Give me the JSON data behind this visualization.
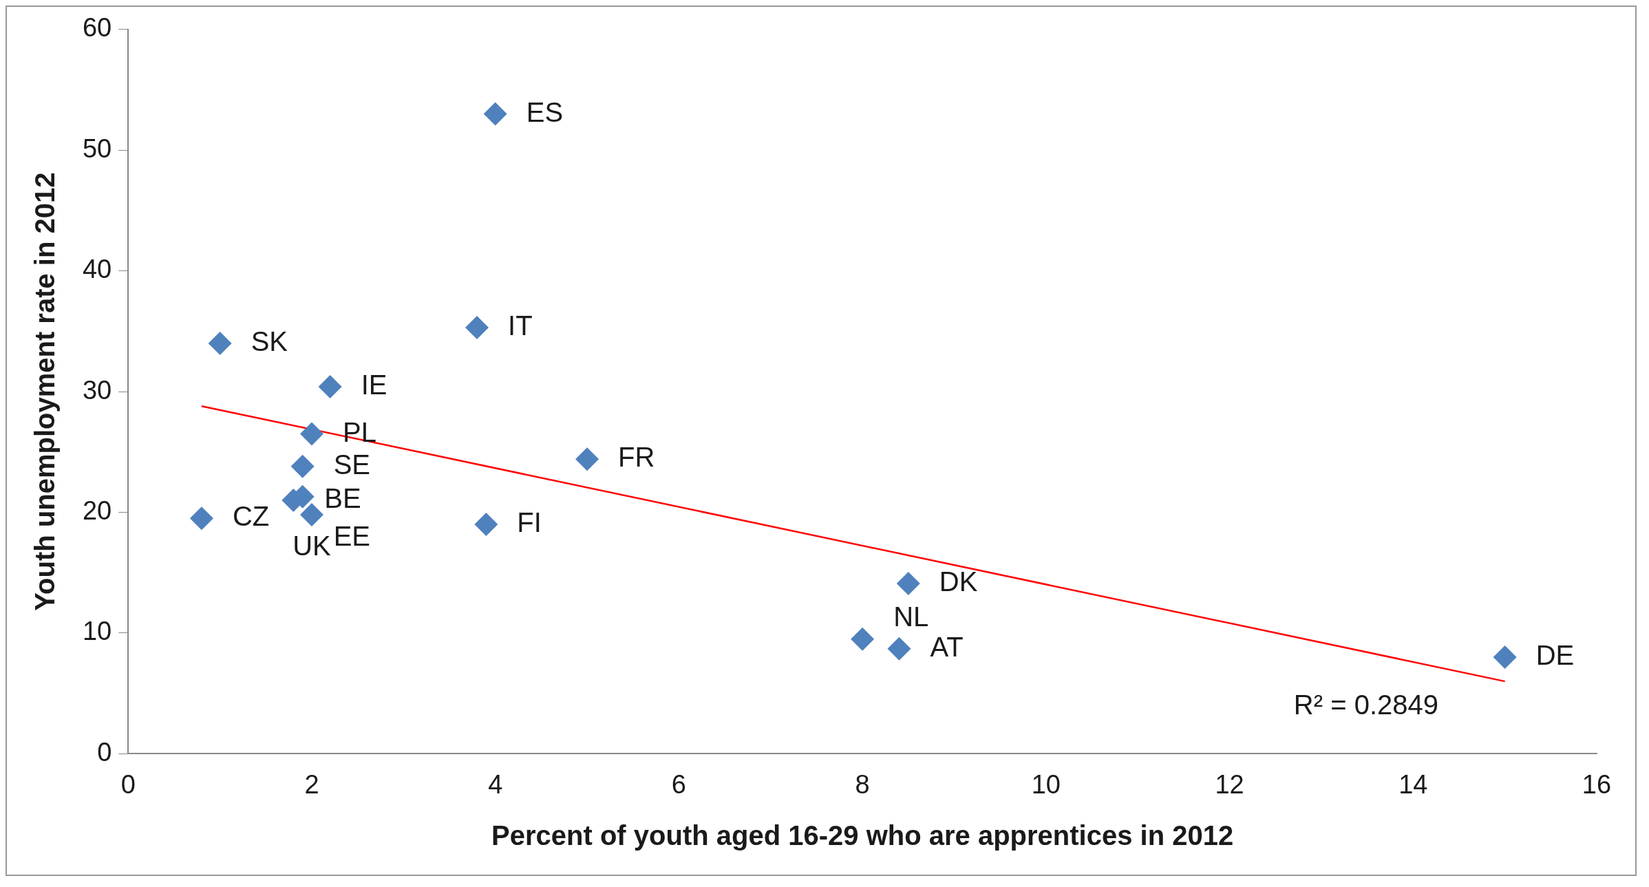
{
  "chart_data": {
    "type": "scatter",
    "xlabel": "Percent of youth aged 16-29 who are apprentices in 2012",
    "ylabel": "Youth unemployment rate in 2012",
    "xlim": [
      0,
      16
    ],
    "xticks": [
      0,
      2,
      4,
      6,
      8,
      10,
      12,
      14,
      16
    ],
    "ylim": [
      0,
      60
    ],
    "yticks": [
      0,
      10,
      20,
      30,
      40,
      50,
      60
    ],
    "grid": false,
    "legend": false,
    "marker": "diamond",
    "series": [
      {
        "color": "#4f81bd",
        "x": [
          0.8,
          1.0,
          1.8,
          1.9,
          2.0,
          1.9,
          2.0,
          2.2,
          3.8,
          4.0,
          3.9,
          5.0,
          8.0,
          8.4,
          8.5,
          15.0
        ],
        "values": [
          19.5,
          34,
          21,
          21.3,
          19.8,
          23.8,
          26.5,
          30.4,
          35.3,
          53,
          19,
          24.4,
          9.5,
          8.7,
          14.1,
          8.0
        ]
      },
      {
        "type": "line",
        "color": "#ff0000",
        "x": [
          0.8,
          15.0
        ],
        "values": [
          28.8,
          6.0
        ],
        "marker": "none"
      }
    ],
    "annotations": [
      {
        "text": "CZ",
        "x": 0.8,
        "y": 19.5
      },
      {
        "text": "SK",
        "x": 1.0,
        "y": 34
      },
      {
        "text": "BE",
        "x": 1.8,
        "y": 21
      },
      {
        "text": "EE",
        "x": 1.9,
        "y": 21.3
      },
      {
        "text": "UK",
        "x": 2.0,
        "y": 19.8
      },
      {
        "text": "SE",
        "x": 1.9,
        "y": 23.8
      },
      {
        "text": "PL",
        "x": 2.0,
        "y": 26.5
      },
      {
        "text": "IE",
        "x": 2.2,
        "y": 30.4
      },
      {
        "text": "IT",
        "x": 3.8,
        "y": 35.3
      },
      {
        "text": "ES",
        "x": 4.0,
        "y": 53
      },
      {
        "text": "FI",
        "x": 3.9,
        "y": 19
      },
      {
        "text": "FR",
        "x": 5.0,
        "y": 24.4
      },
      {
        "text": "NL",
        "x": 8.0,
        "y": 9.5
      },
      {
        "text": "AT",
        "x": 8.4,
        "y": 8.7
      },
      {
        "text": "DK",
        "x": 8.5,
        "y": 14.1
      },
      {
        "text": "DE",
        "x": 15.0,
        "y": 8.0
      },
      "R² = 0.2849"
    ]
  }
}
